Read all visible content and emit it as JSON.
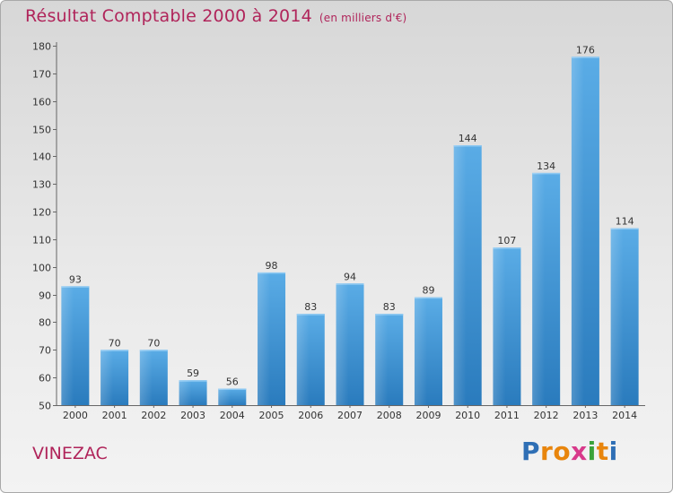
{
  "header": {
    "title": "Résultat Comptable 2000 à 2014",
    "unit": "(en milliers d'€)"
  },
  "commune": "VINEZAC",
  "logo": {
    "letters": [
      "P",
      "r",
      "o",
      "x",
      "i",
      "t",
      "i"
    ],
    "colors": [
      "#2f6fb5",
      "#e8850c",
      "#e8850c",
      "#d83a8b",
      "#3aa23a",
      "#e8850c",
      "#2f6fb5"
    ]
  },
  "colors": {
    "title": "#b0245a",
    "bar_light": "#5aace6",
    "bar_dark": "#2a7bbd"
  },
  "chart_data": {
    "type": "bar",
    "title": "Résultat Comptable 2000 à 2014",
    "subtitle": "(en milliers d'€)",
    "categories": [
      "2000",
      "2001",
      "2002",
      "2003",
      "2004",
      "2005",
      "2006",
      "2007",
      "2008",
      "2009",
      "2010",
      "2011",
      "2012",
      "2013",
      "2014"
    ],
    "values": [
      93,
      70,
      70,
      59,
      56,
      98,
      83,
      94,
      83,
      89,
      144,
      107,
      134,
      176,
      114
    ],
    "ylim": [
      50,
      180
    ],
    "yticks": [
      50,
      60,
      70,
      80,
      90,
      100,
      110,
      120,
      130,
      140,
      150,
      160,
      170,
      180
    ],
    "grid": false,
    "data_labels": true
  }
}
